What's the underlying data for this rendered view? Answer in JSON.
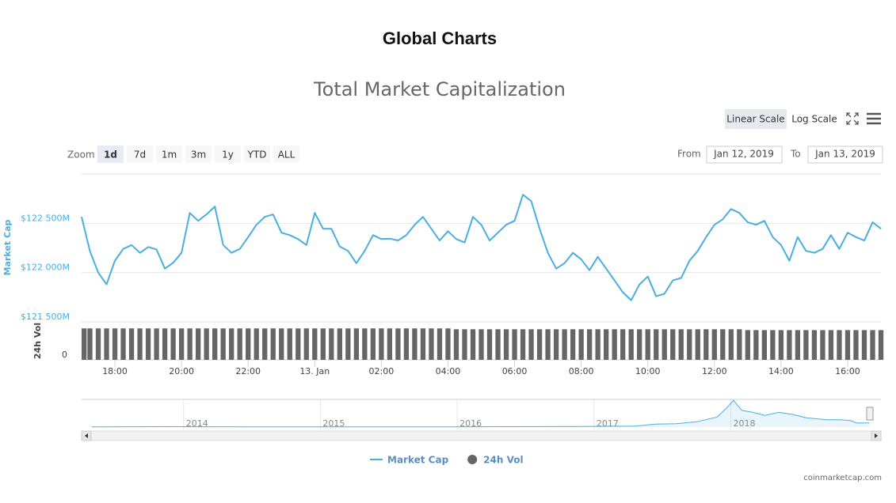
{
  "header": {
    "title": "Global Charts"
  },
  "controls": {
    "scale_buttons": [
      "Linear Scale",
      "Log Scale"
    ],
    "active_scale": 0,
    "zoom_label": "Zoom",
    "zoom_buttons": [
      "1d",
      "7d",
      "1m",
      "3m",
      "1y",
      "YTD",
      "ALL"
    ],
    "active_zoom": 0,
    "from_label": "From",
    "from": "Jan 12, 2019",
    "to_label": "To",
    "to": "Jan 13, 2019"
  },
  "chart_data": [
    {
      "type": "line",
      "title": "Total Market Capitalization",
      "y_label": "Market Cap",
      "y2_label": "24h Vol",
      "log_scale": false,
      "grid": true,
      "x": [
        17,
        17.25,
        17.5,
        17.75,
        18,
        18.25,
        18.5,
        18.75,
        19,
        19.25,
        19.5,
        19.75,
        20,
        20.25,
        20.5,
        20.75,
        21,
        21.25,
        21.5,
        21.75,
        22,
        22.25,
        22.5,
        22.75,
        23,
        23.25,
        23.5,
        23.75,
        24,
        24.25,
        24.5,
        24.75,
        25,
        25.25,
        25.5,
        25.75,
        26,
        26.25,
        26.5,
        26.75,
        27,
        27.25,
        27.5,
        27.75,
        28,
        28.25,
        28.5,
        28.75,
        29,
        29.25,
        29.5,
        29.75,
        30,
        30.25,
        30.5,
        30.75,
        31,
        31.25,
        31.5,
        31.75,
        32,
        32.25,
        32.5,
        32.75,
        33,
        33.25,
        33.5,
        33.75,
        34,
        34.25,
        34.5,
        34.75,
        35,
        35.25,
        35.5,
        35.75,
        36,
        36.25,
        36.5,
        36.75,
        37,
        37.25,
        37.5,
        37.75,
        38,
        38.25,
        38.5,
        38.75,
        39,
        39.25,
        39.5,
        39.75,
        40,
        40.25,
        40.5,
        40.75,
        41
      ],
      "xlim": [
        17,
        41
      ],
      "xticks": [
        {
          "value": 18,
          "label": "18:00"
        },
        {
          "value": 20,
          "label": "20:00"
        },
        {
          "value": 22,
          "label": "22:00"
        },
        {
          "value": 24,
          "label": "13. Jan"
        },
        {
          "value": 26,
          "label": "02:00"
        },
        {
          "value": 28,
          "label": "04:00"
        },
        {
          "value": 30,
          "label": "06:00"
        },
        {
          "value": 32,
          "label": "08:00"
        },
        {
          "value": 34,
          "label": "10:00"
        },
        {
          "value": 36,
          "label": "12:00"
        },
        {
          "value": 38,
          "label": "14:00"
        },
        {
          "value": 40,
          "label": "16:00"
        }
      ],
      "ylim": [
        121500,
        123000
      ],
      "yticks": [
        {
          "value": 121500,
          "label": "$121 500M"
        },
        {
          "value": 122000,
          "label": "$122 000M"
        },
        {
          "value": 122500,
          "label": "$122 500M"
        }
      ],
      "y2lim": [
        0,
        40
      ],
      "y2ticks": [
        0
      ],
      "series": [
        {
          "name": "Market Cap",
          "color": "#4aaee0",
          "values": [
            122565,
            122218,
            122000,
            121880,
            122120,
            122240,
            122280,
            122200,
            122260,
            122235,
            122040,
            122100,
            122200,
            122605,
            122525,
            122590,
            122670,
            122280,
            122200,
            122240,
            122360,
            122485,
            122565,
            122590,
            122405,
            122380,
            122340,
            122280,
            122605,
            122445,
            122445,
            122265,
            122220,
            122095,
            122220,
            122380,
            122340,
            122345,
            122325,
            122380,
            122485,
            122565,
            122445,
            122325,
            122420,
            122340,
            122305,
            122565,
            122485,
            122325,
            122405,
            122485,
            122525,
            122790,
            122725,
            122445,
            122200,
            122040,
            122095,
            122200,
            122135,
            122025,
            122160,
            122040,
            121920,
            121800,
            121720,
            121880,
            121960,
            121760,
            121785,
            121920,
            121945,
            122120,
            122220,
            122360,
            122485,
            122540,
            122645,
            122605,
            122510,
            122485,
            122525,
            122360,
            122280,
            122120,
            122360,
            122220,
            122200,
            122240,
            122380,
            122240,
            122405,
            122360,
            122325,
            122510,
            122445
          ]
        },
        {
          "name": "24h Vol",
          "type": "bar",
          "axis": "y2",
          "color": "#666666",
          "values": [
            37,
            37,
            37,
            37,
            37,
            37,
            37,
            37,
            37,
            37,
            37,
            37,
            37,
            37,
            37,
            37,
            37,
            37,
            37,
            37,
            37,
            37,
            37,
            37,
            37,
            37,
            37,
            37,
            37,
            37,
            37,
            37,
            37,
            37,
            37,
            37,
            37,
            37,
            37,
            37,
            37,
            37,
            37,
            37,
            37,
            36,
            36,
            36,
            36,
            36,
            36,
            36,
            36,
            36,
            36,
            36,
            36,
            36,
            36,
            36,
            36,
            36,
            36,
            36,
            36,
            36,
            36,
            36,
            36,
            36,
            36,
            36,
            36,
            36,
            36,
            36,
            36,
            36,
            36,
            36,
            35,
            35,
            35,
            35,
            35,
            35,
            35,
            35,
            35,
            35,
            35,
            35,
            35,
            35,
            35,
            35,
            35
          ]
        }
      ]
    },
    {
      "type": "area",
      "color": "#4aaee0",
      "x": [
        2013.33,
        2013.9,
        2014.5,
        2015,
        2016,
        2016.9,
        2017.3,
        2017.45,
        2017.6,
        2017.75,
        2017.9,
        2017.97,
        2018.02,
        2018.08,
        2018.15,
        2018.25,
        2018.35,
        2018.45,
        2018.55,
        2018.7,
        2018.8,
        2018.87,
        2018.92,
        2019.01
      ],
      "values": [
        5000,
        12000,
        8000,
        5000,
        7000,
        17000,
        30000,
        90000,
        100000,
        160000,
        300000,
        580000,
        800000,
        500000,
        450000,
        350000,
        440000,
        380000,
        280000,
        220000,
        220000,
        200000,
        120000,
        125000
      ],
      "xlim": [
        2013.33,
        2019.01
      ],
      "ylim": [
        0,
        830000
      ],
      "xticks": [
        2014,
        2015,
        2016,
        2017,
        2018
      ]
    }
  ],
  "credit": "coinmarketcap.com"
}
